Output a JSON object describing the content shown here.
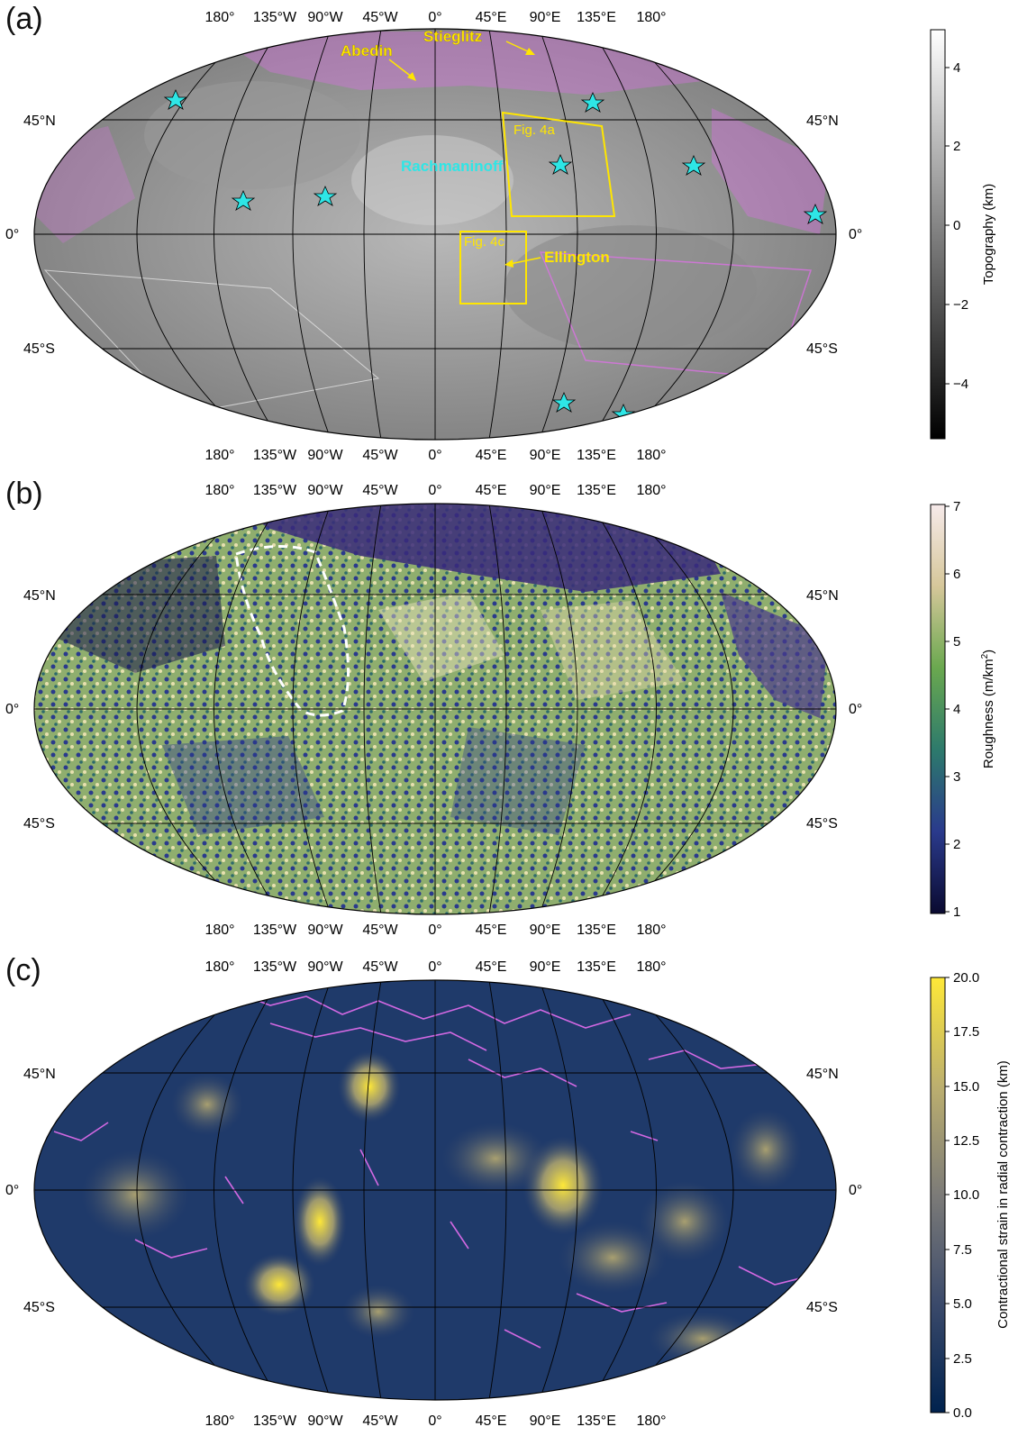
{
  "longitude_labels": [
    "180°",
    "135°W",
    "90°W",
    "45°W",
    "0°",
    "45°E",
    "90°E",
    "135°E",
    "180°"
  ],
  "latitude_labels": {
    "north": "45°N",
    "equator": "0°",
    "south": "45°S"
  },
  "panels": [
    {
      "letter": "(a)",
      "colorbar": {
        "label": "Topography (km)",
        "ticks": [
          "4",
          "2",
          "0",
          "−2",
          "−4"
        ],
        "range": [
          -5.3,
          5
        ],
        "colors": [
          "#000000",
          "#ffffff"
        ]
      },
      "annotations": {
        "abedin": "Abedin",
        "stieglitz": "Stieglitz",
        "rachmaninoff": "Rachmaninoff",
        "ellington": "Ellington",
        "fig4a": "Fig. 4a",
        "fig4c": "Fig. 4c"
      },
      "marker_color": "#2ee6e6",
      "box_color": "#ffe600"
    },
    {
      "letter": "(b)",
      "colorbar": {
        "label": "Roughness (m/km",
        "label_sup": "2",
        "label_end": ")",
        "ticks": [
          "7",
          "6",
          "5",
          "4",
          "3",
          "2",
          "1"
        ],
        "range": [
          1,
          7
        ],
        "colors": [
          "#0a0a30",
          "#2a3a8c",
          "#2d7a6c",
          "#6aa84f",
          "#d6c79a",
          "#f6eaea"
        ]
      }
    },
    {
      "letter": "(c)",
      "colorbar": {
        "label": "Contractional strain in radial contraction (km)",
        "ticks": [
          "20.0",
          "17.5",
          "15.0",
          "12.5",
          "10.0",
          "7.5",
          "5.0",
          "2.5",
          "0.0"
        ],
        "range": [
          0,
          20
        ],
        "colors": [
          "#00224e",
          "#3b4a6b",
          "#7c7b78",
          "#bcaf6f",
          "#fee838"
        ]
      }
    }
  ],
  "overlay_colors": {
    "faults": "#e66ef0",
    "contours": "#ffffff"
  }
}
